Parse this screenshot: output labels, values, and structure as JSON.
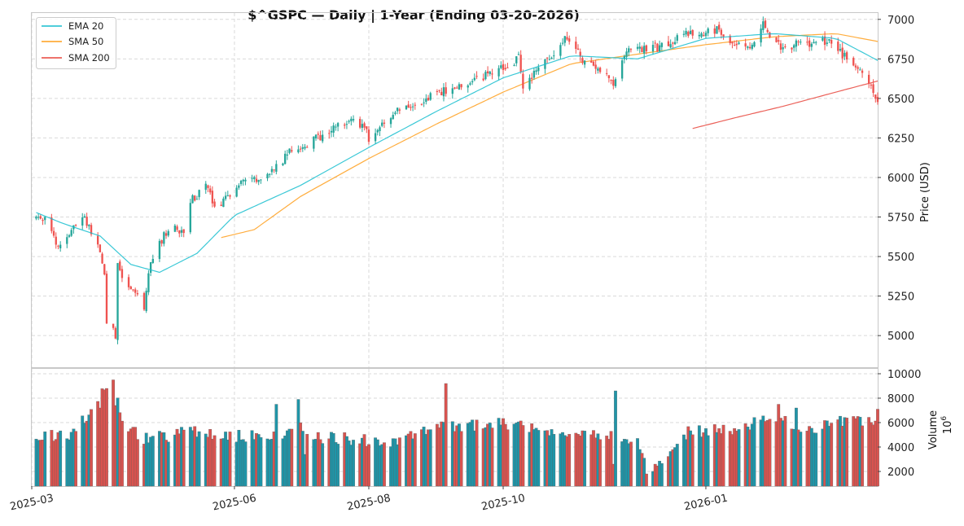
{
  "chart_data": {
    "type": "candlestick",
    "title": "$^GSPC  —  Daily  |  1-Year (Ending 03-20-2026)",
    "x_tick_labels": [
      "2025-03",
      "2025-06",
      "2025-08",
      "2025-10",
      "2026-01"
    ],
    "x_tick_dates": [
      "2025-03-01",
      "2025-06-01",
      "2025-08-01",
      "2025-10-01",
      "2026-01-01"
    ],
    "xlim": [
      "2025-03-01",
      "2026-03-20"
    ],
    "price_panel": {
      "ylabel": "Price (USD)",
      "ylim": [
        4800,
        7040
      ],
      "y_ticks": [
        5000,
        5250,
        5500,
        5750,
        6000,
        6250,
        6500,
        6750,
        7000
      ],
      "grid": true
    },
    "volume_panel": {
      "ylabel": "Volume",
      "unit_label": "10",
      "unit_exponent": "6",
      "ylim": [
        800,
        10400
      ],
      "y_ticks": [
        2000,
        4000,
        6000,
        8000,
        10000
      ],
      "grid": true
    },
    "legend": {
      "placement": "top-left",
      "entries": [
        {
          "name": "EMA 20",
          "color": "#17becf"
        },
        {
          "name": "SMA 50",
          "color": "#ff9f1c"
        },
        {
          "name": "SMA 200",
          "color": "#e8453c"
        }
      ]
    },
    "colors": {
      "up": "#26a69a",
      "down": "#ef5350",
      "vol_up": "#1f95a8",
      "vol_down": "#d9534f"
    },
    "price_anchors": [
      [
        "2025-03-01",
        5740
      ],
      [
        "2025-03-08",
        5740
      ],
      [
        "2025-03-13",
        5550
      ],
      [
        "2025-03-17",
        5640
      ],
      [
        "2025-03-24",
        5760
      ],
      [
        "2025-03-31",
        5580
      ],
      [
        "2025-04-03",
        5400
      ],
      [
        "2025-04-04",
        5070
      ],
      [
        "2025-04-07",
        5060
      ],
      [
        "2025-04-08",
        4980
      ],
      [
        "2025-04-09",
        5460
      ],
      [
        "2025-04-11",
        5360
      ],
      [
        "2025-04-17",
        5290
      ],
      [
        "2025-04-21",
        5160
      ],
      [
        "2025-04-24",
        5480
      ],
      [
        "2025-05-02",
        5680
      ],
      [
        "2025-05-09",
        5660
      ],
      [
        "2025-05-12",
        5850
      ],
      [
        "2025-05-20",
        5950
      ],
      [
        "2025-05-23",
        5800
      ],
      [
        "2025-06-06",
        6000
      ],
      [
        "2025-06-13",
        5980
      ],
      [
        "2025-06-27",
        6170
      ],
      [
        "2025-07-10",
        6260
      ],
      [
        "2025-07-24",
        6380
      ],
      [
        "2025-07-31",
        6300
      ],
      [
        "2025-08-01",
        6230
      ],
      [
        "2025-08-15",
        6450
      ],
      [
        "2025-08-28",
        6500
      ],
      [
        "2025-09-12",
        6590
      ],
      [
        "2025-09-26",
        6660
      ],
      [
        "2025-10-08",
        6750
      ],
      [
        "2025-10-10",
        6580
      ],
      [
        "2025-10-20",
        6730
      ],
      [
        "2025-10-29",
        6890
      ],
      [
        "2025-11-07",
        6730
      ],
      [
        "2025-11-20",
        6600
      ],
      [
        "2025-11-26",
        6810
      ],
      [
        "2025-12-12",
        6820
      ],
      [
        "2025-12-24",
        6920
      ],
      [
        "2026-01-06",
        6930
      ],
      [
        "2026-01-20",
        6800
      ],
      [
        "2026-01-27",
        6970
      ],
      [
        "2026-02-05",
        6800
      ],
      [
        "2026-02-13",
        6850
      ],
      [
        "2026-02-27",
        6870
      ],
      [
        "2026-03-06",
        6740
      ],
      [
        "2026-03-13",
        6650
      ],
      [
        "2026-03-20",
        6506
      ]
    ],
    "ema20_anchors": [
      [
        "2025-03-01",
        5790
      ],
      [
        "2025-03-15",
        5710
      ],
      [
        "2025-04-01",
        5630
      ],
      [
        "2025-04-15",
        5450
      ],
      [
        "2025-04-28",
        5400
      ],
      [
        "2025-05-15",
        5520
      ],
      [
        "2025-06-01",
        5760
      ],
      [
        "2025-07-01",
        5950
      ],
      [
        "2025-08-01",
        6190
      ],
      [
        "2025-09-01",
        6420
      ],
      [
        "2025-10-01",
        6630
      ],
      [
        "2025-11-01",
        6770
      ],
      [
        "2025-12-01",
        6750
      ],
      [
        "2026-01-01",
        6880
      ],
      [
        "2026-02-01",
        6910
      ],
      [
        "2026-03-01",
        6880
      ],
      [
        "2026-03-20",
        6740
      ]
    ],
    "sma50_anchors": [
      [
        "2025-05-26",
        5620
      ],
      [
        "2025-06-10",
        5670
      ],
      [
        "2025-07-01",
        5880
      ],
      [
        "2025-08-01",
        6120
      ],
      [
        "2025-09-01",
        6340
      ],
      [
        "2025-10-01",
        6540
      ],
      [
        "2025-11-01",
        6720
      ],
      [
        "2025-12-01",
        6780
      ],
      [
        "2026-01-01",
        6840
      ],
      [
        "2026-02-01",
        6890
      ],
      [
        "2026-03-01",
        6910
      ],
      [
        "2026-03-20",
        6860
      ]
    ],
    "sma200_anchors": [
      [
        "2025-12-26",
        6310
      ],
      [
        "2026-01-15",
        6380
      ],
      [
        "2026-02-05",
        6450
      ],
      [
        "2026-03-01",
        6540
      ],
      [
        "2026-03-20",
        6610
      ]
    ],
    "volume_anchors": [
      [
        "2025-03-01",
        4500
      ],
      [
        "2025-03-20",
        5200
      ],
      [
        "2025-04-04",
        8800
      ],
      [
        "2025-04-07",
        9500
      ],
      [
        "2025-04-10",
        6500
      ],
      [
        "2025-04-20",
        4600
      ],
      [
        "2025-05-10",
        5200
      ],
      [
        "2025-06-01",
        4900
      ],
      [
        "2025-06-20",
        5100
      ],
      [
        "2025-07-01",
        5600
      ],
      [
        "2025-07-10",
        4800
      ],
      [
        "2025-08-01",
        4600
      ],
      [
        "2025-08-15",
        4500
      ],
      [
        "2025-09-01",
        5500
      ],
      [
        "2025-10-01",
        6000
      ],
      [
        "2025-10-20",
        5500
      ],
      [
        "2025-11-05",
        5300
      ],
      [
        "2025-11-20",
        5000
      ],
      [
        "2025-12-01",
        4600
      ],
      [
        "2025-12-05",
        2000
      ],
      [
        "2025-12-15",
        3500
      ],
      [
        "2025-12-24",
        5200
      ],
      [
        "2026-01-15",
        5500
      ],
      [
        "2026-02-01",
        6500
      ],
      [
        "2026-02-15",
        5500
      ],
      [
        "2026-03-01",
        6000
      ],
      [
        "2026-03-20",
        6200
      ]
    ],
    "volume_spikes": [
      [
        "2025-04-01",
        7200
      ],
      [
        "2025-04-04",
        8800
      ],
      [
        "2025-04-07",
        9500
      ],
      [
        "2025-04-08",
        7400
      ],
      [
        "2025-06-20",
        7500
      ],
      [
        "2025-06-30",
        7900
      ],
      [
        "2025-07-03",
        3400
      ],
      [
        "2025-09-05",
        9200
      ],
      [
        "2025-11-21",
        8600
      ],
      [
        "2025-12-05",
        1800
      ],
      [
        "2025-12-09",
        2600
      ],
      [
        "2025-11-20",
        2600
      ],
      [
        "2026-02-03",
        7500
      ],
      [
        "2026-02-11",
        7200
      ],
      [
        "2026-03-20",
        7100
      ]
    ]
  }
}
